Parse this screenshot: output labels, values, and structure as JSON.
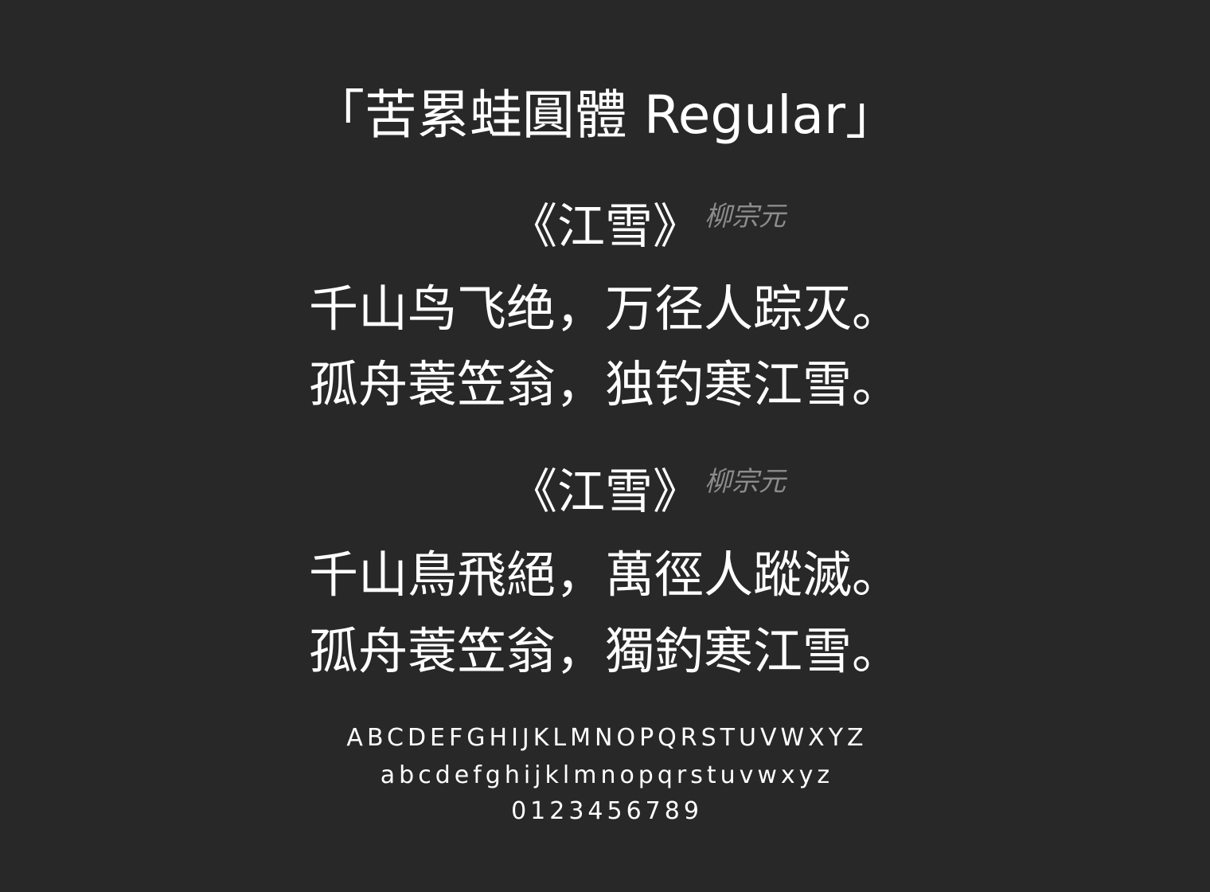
{
  "title": "「苦累蛙圓體 Regular」",
  "poems": [
    {
      "title": "《江雪》",
      "author": "柳宗元",
      "lines": [
        "千山鸟飞绝，万径人踪灭。",
        "孤舟蓑笠翁，独钓寒江雪。"
      ]
    },
    {
      "title": "《江雪》",
      "author": "柳宗元",
      "lines": [
        "千山鳥飛絕，萬徑人蹤滅。",
        "孤舟蓑笠翁，獨釣寒江雪。"
      ]
    }
  ],
  "glyphs": {
    "uppercase": "ABCDEFGHIJKLMNOPQRSTUVWXYZ",
    "lowercase": "abcdefghijklmnopqrstuvwxyz",
    "digits": "0123456789"
  },
  "colors": {
    "background": "#282828",
    "text": "#ffffff",
    "muted": "#8c8c8c"
  }
}
